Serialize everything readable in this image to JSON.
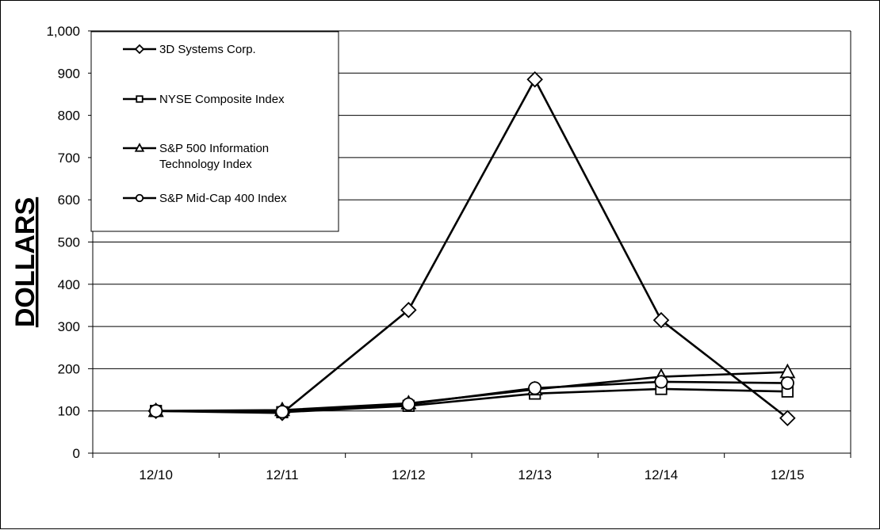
{
  "chart_data": {
    "type": "line",
    "title": "",
    "xlabel": "",
    "ylabel": "DOLLARS",
    "categories": [
      "12/10",
      "12/11",
      "12/12",
      "12/13",
      "12/14",
      "12/15"
    ],
    "ylim": [
      0,
      1000
    ],
    "yticks": [
      0,
      100,
      200,
      300,
      400,
      500,
      600,
      700,
      800,
      900,
      1000
    ],
    "ytick_labels": [
      "0",
      "100",
      "200",
      "300",
      "400",
      "500",
      "600",
      "700",
      "800",
      "900",
      "1,000"
    ],
    "grid": "horizontal",
    "legend_position": "top-left",
    "series": [
      {
        "name": "3D Systems Corp.",
        "marker": "diamond",
        "values": [
          100,
          95,
          339,
          885,
          315,
          83
        ]
      },
      {
        "name": "NYSE Composite Index",
        "marker": "square",
        "values": [
          100,
          97,
          112,
          141,
          152,
          146
        ]
      },
      {
        "name": "S&P 500 Information Technology Index",
        "name_lines": [
          "S&P 500 Information",
          "Technology Index"
        ],
        "marker": "triangle",
        "values": [
          100,
          102,
          118,
          151,
          181,
          192
        ]
      },
      {
        "name": "S&P Mid-Cap 400 Index",
        "marker": "circle",
        "values": [
          100,
          98,
          116,
          154,
          169,
          166
        ]
      }
    ],
    "colors": {
      "line": "#000000",
      "marker_fill": "#ffffff",
      "grid": "#000000"
    }
  }
}
